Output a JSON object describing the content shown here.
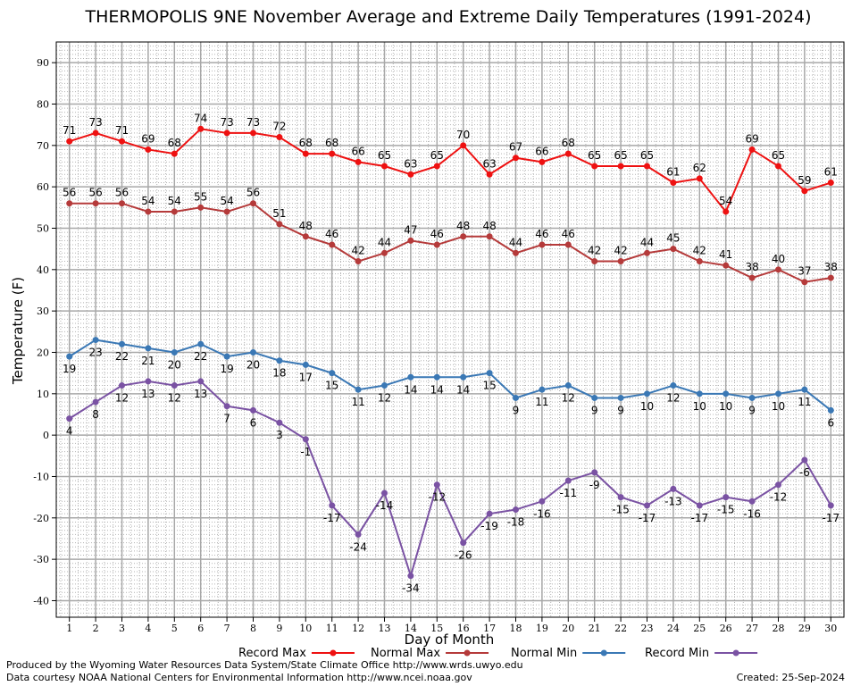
{
  "chart_data": {
    "type": "line",
    "title": "THERMOPOLIS 9NE November Average and Extreme Daily Temperatures (1991-2024)",
    "xlabel": "Day of Month",
    "ylabel": "Temperature (F)",
    "xlim": [
      0.5,
      30.5
    ],
    "ylim": [
      -44,
      95
    ],
    "yticks": [
      -40,
      -30,
      -20,
      -10,
      0,
      10,
      20,
      30,
      40,
      50,
      60,
      70,
      80,
      90
    ],
    "x": [
      1,
      2,
      3,
      4,
      5,
      6,
      7,
      8,
      9,
      10,
      11,
      12,
      13,
      14,
      15,
      16,
      17,
      18,
      19,
      20,
      21,
      22,
      23,
      24,
      25,
      26,
      27,
      28,
      29,
      30
    ],
    "grid": true,
    "legend_position": "bottom",
    "series": [
      {
        "name": "Record Max",
        "color": "#ee1111",
        "label_position": "above",
        "values": [
          71,
          73,
          71,
          69,
          68,
          74,
          73,
          73,
          72,
          68,
          68,
          66,
          65,
          63,
          65,
          70,
          63,
          67,
          66,
          68,
          65,
          65,
          65,
          61,
          62,
          54,
          69,
          65,
          59,
          61
        ]
      },
      {
        "name": "Normal Max",
        "color": "#b53a3a",
        "label_position": "above",
        "values": [
          56,
          56,
          56,
          54,
          54,
          55,
          54,
          56,
          51,
          48,
          46,
          42,
          44,
          47,
          46,
          48,
          48,
          44,
          46,
          46,
          42,
          42,
          44,
          45,
          42,
          41,
          38,
          40,
          37,
          38
        ]
      },
      {
        "name": "Normal Min",
        "color": "#3a78b5",
        "label_position": "below",
        "values": [
          19,
          23,
          22,
          21,
          20,
          22,
          19,
          20,
          18,
          17,
          15,
          11,
          12,
          14,
          14,
          14,
          15,
          9,
          11,
          12,
          9,
          9,
          10,
          12,
          10,
          10,
          9,
          10,
          11,
          6
        ]
      },
      {
        "name": "Record Min",
        "color": "#7a52a3",
        "label_position": "below",
        "values": [
          4,
          8,
          12,
          13,
          12,
          13,
          7,
          6,
          3,
          -1,
          -17,
          -24,
          -14,
          -34,
          -12,
          -26,
          -19,
          -18,
          -16,
          -11,
          -9,
          -15,
          -17,
          -13,
          -17,
          -15,
          -16,
          -12,
          -6,
          -17
        ]
      }
    ]
  },
  "footer": {
    "line1": "Produced by the Wyoming Water Resources Data System/State Climate Office http://www.wrds.uwyo.edu",
    "line2": "Data courtesy NOAA National Centers for Environmental Information http://www.ncei.noaa.gov",
    "created": "Created:  25-Sep-2024"
  }
}
